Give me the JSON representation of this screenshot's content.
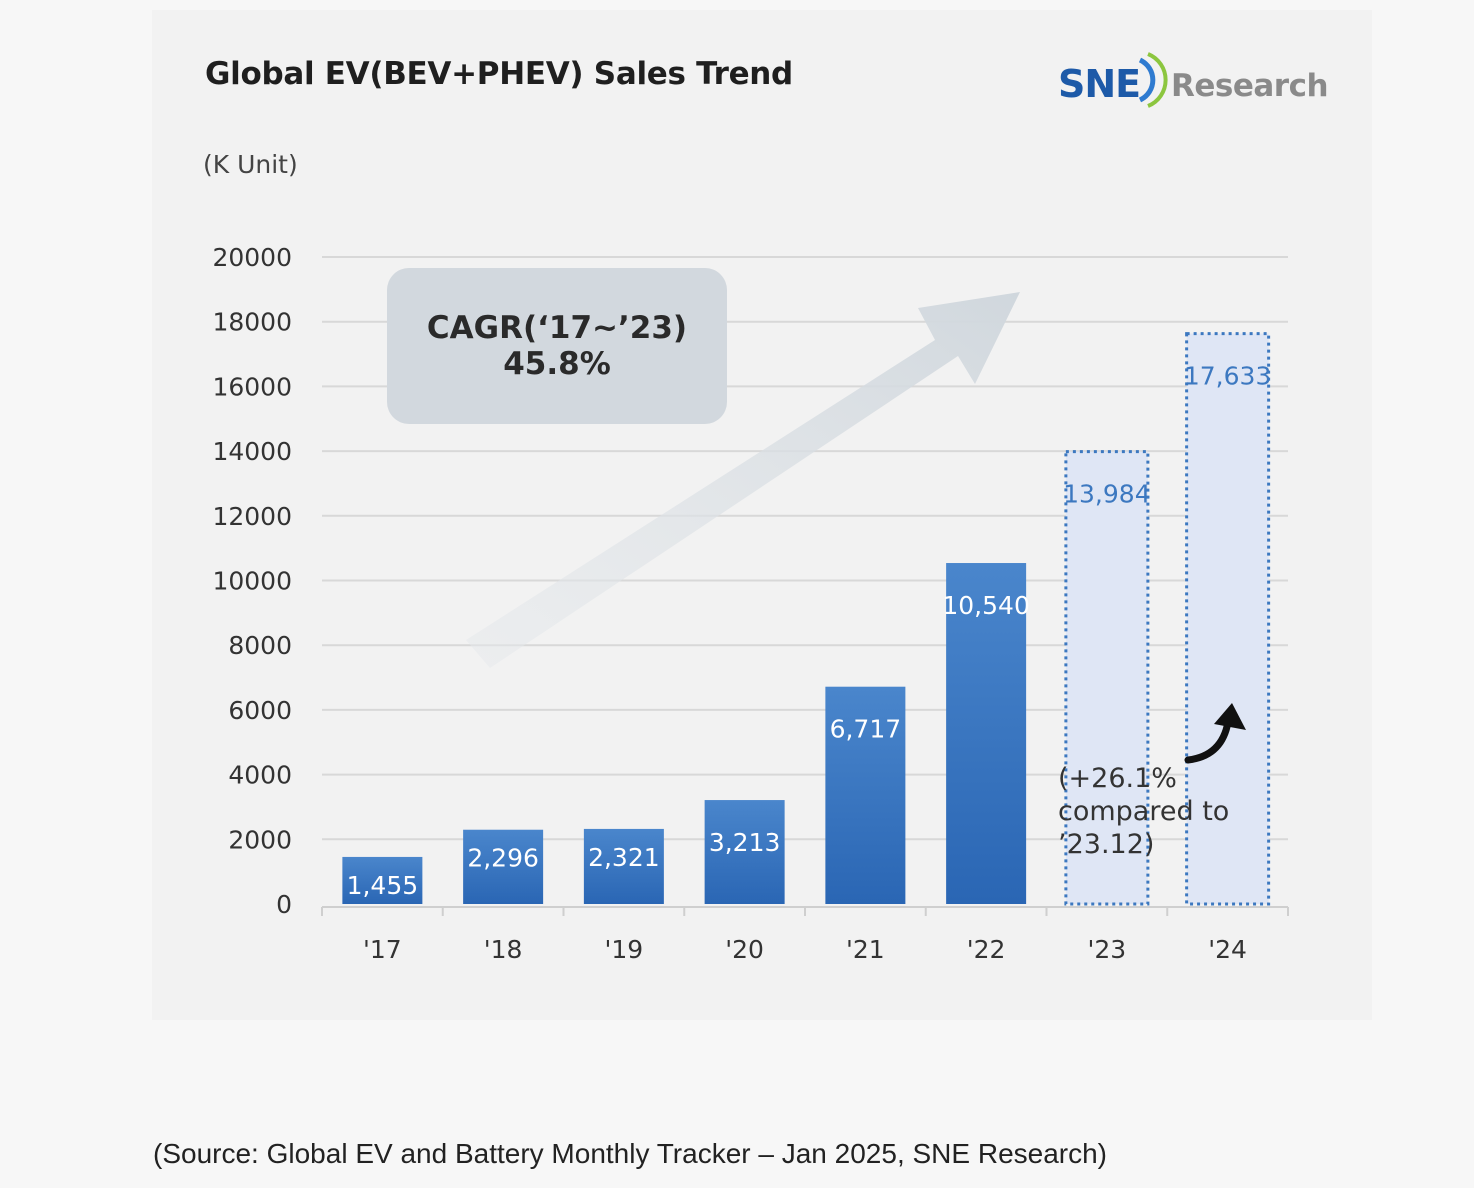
{
  "title": "Global EV(BEV+PHEV) Sales Trend",
  "logo": {
    "primary": "SNE",
    "secondary": "Research"
  },
  "unit_label": "(K Unit)",
  "cagr": {
    "label": "CAGR(‘17~’23)",
    "value": "45.8%"
  },
  "note_lines": [
    "(+26.1%",
    "compared to",
    "’23.12)"
  ],
  "source": "(Source: Global EV and Battery Monthly Tracker – Jan 2025, SNE Research)",
  "colors": {
    "bar_top": "#4a86cc",
    "bar_bottom": "#2a66b4",
    "projected_fill": "#dfe6f5",
    "projected_border": "#3c78c0",
    "value_label_outside": "#3c78c0",
    "gridline": "#d8d8d8"
  },
  "chart_data": {
    "type": "bar",
    "categories": [
      "'17",
      "'18",
      "'19",
      "'20",
      "'21",
      "'22",
      "'23",
      "'24"
    ],
    "values": [
      1455,
      2296,
      2321,
      3213,
      6717,
      10540,
      13984,
      17633
    ],
    "value_labels": [
      "1,455",
      "2,296",
      "2,321",
      "3,213",
      "6,717",
      "10,540",
      "13,984",
      "17,633"
    ],
    "bar_style": [
      "solid",
      "solid",
      "solid",
      "solid",
      "solid",
      "solid",
      "dotted",
      "dotted"
    ],
    "yticks": [
      0,
      2000,
      4000,
      6000,
      8000,
      10000,
      12000,
      14000,
      16000,
      18000,
      20000
    ],
    "ylim": [
      0,
      20000
    ],
    "grid": true
  }
}
